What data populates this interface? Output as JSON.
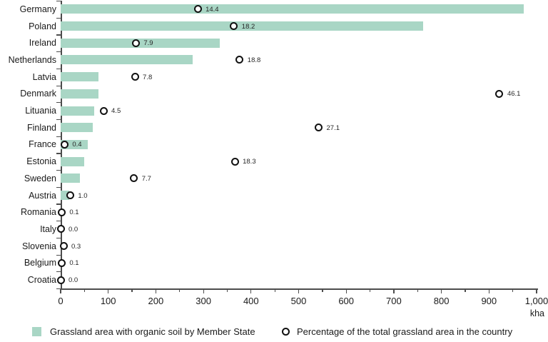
{
  "chart_data": {
    "type": "bar",
    "orientation": "horizontal",
    "title": "",
    "categories": [
      "Germany",
      "Poland",
      "Ireland",
      "Netherlands",
      "Latvia",
      "Denmark",
      "Lituania",
      "Finland",
      "France",
      "Estonia",
      "Sweden",
      "Austria",
      "Romania",
      "Italy",
      "Slovenia",
      "Belgium",
      "Croatia"
    ],
    "series": [
      {
        "name": "Grassland area with organic soil by Member State",
        "type": "bar",
        "unit": "kha",
        "values": [
          973,
          762,
          334,
          277,
          79,
          79,
          70,
          67,
          57,
          49,
          40,
          18,
          0,
          0,
          0,
          0,
          0
        ]
      },
      {
        "name": "Percentage of the total grassland area in the country",
        "type": "scatter",
        "unit": "%",
        "values": [
          14.4,
          18.2,
          7.9,
          18.8,
          7.8,
          46.1,
          4.5,
          27.1,
          0.4,
          18.3,
          7.7,
          1.0,
          0.1,
          0.0,
          0.3,
          0.1,
          0.0
        ],
        "labels": [
          "14.4",
          "18.2",
          "7.9",
          "18.8",
          "7.8",
          "46.1",
          "4.5",
          "27.1",
          "0.4",
          "18.3",
          "7.7",
          "1.0",
          "0.1",
          "0.0",
          "0.3",
          "0.1",
          "0.0"
        ]
      }
    ],
    "x_axis": {
      "min": 0,
      "max": 1000,
      "major_ticks": [
        0,
        100,
        200,
        300,
        400,
        500,
        600,
        700,
        800,
        900,
        1000
      ],
      "major_tick_labels": [
        "0",
        "100",
        "200",
        "300",
        "400",
        "500",
        "600",
        "700",
        "800",
        "900",
        "1,000"
      ],
      "minor_tick_step": 50,
      "unit_label": "kha"
    },
    "pct_axis": {
      "min": 0,
      "max": 50
    },
    "grid": false,
    "legend_position": "bottom"
  },
  "legend": {
    "items": [
      {
        "label": "Grassland area with organic soil by Member State",
        "marker": "square",
        "color": "#a9d6c5"
      },
      {
        "label": "Percentage of the total grassland area in the country",
        "marker": "circle",
        "color": "#111111"
      }
    ]
  },
  "colors": {
    "bar": "#a9d6c5",
    "marker_stroke": "#111111",
    "marker_fill": "#ffffff",
    "axis": "#4d4d4d",
    "text": "#262626"
  }
}
